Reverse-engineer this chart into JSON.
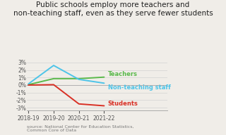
{
  "title": "Public schools employ more teachers and\nnon-teaching staff, even as they serve fewer students",
  "x_labels": [
    "2018-19",
    "2019-20",
    "2020-21",
    "2021-22"
  ],
  "x_values": [
    0,
    1,
    2,
    3
  ],
  "teachers": [
    0.05,
    0.85,
    0.85,
    1.05
  ],
  "non_teaching": [
    0.15,
    2.6,
    0.75,
    0.25
  ],
  "students": [
    0.0,
    0.05,
    -2.5,
    -2.75
  ],
  "teachers_color": "#5ab94b",
  "non_teaching_color": "#4dc4e8",
  "students_color": "#d93025",
  "yticks": [
    -3,
    -2,
    -1,
    0,
    1,
    2,
    3
  ],
  "ylim": [
    -3.4,
    3.4
  ],
  "source_text": "source: National Center for Education Statistics,\nCommon Core of Data",
  "bg_color": "#f0ede8",
  "title_fontsize": 7.5,
  "label_fontsize": 6.0,
  "tick_fontsize": 5.5,
  "source_fontsize": 4.5
}
